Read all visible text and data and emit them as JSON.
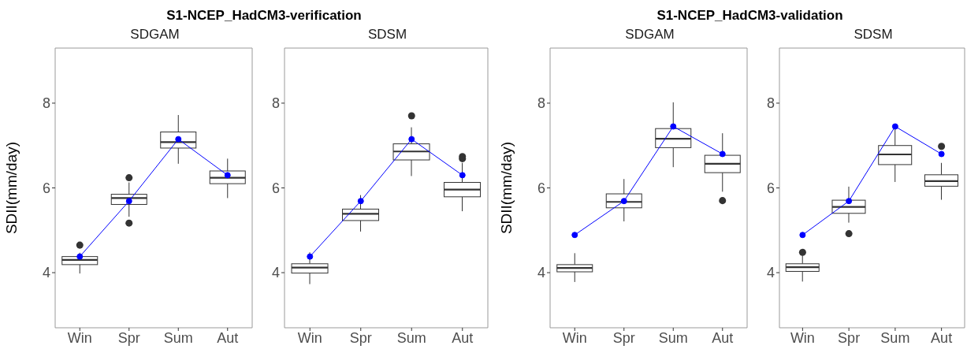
{
  "chart_data": [
    {
      "type": "box",
      "title": "S1-NCEP_HadCM3-verification",
      "subtitle": "SDGAM",
      "ylabel": "SDII(mm/day)",
      "categories": [
        "Win",
        "Spr",
        "Sum",
        "Aut"
      ],
      "ylim": [
        2.7,
        9.3
      ],
      "yticks": [
        4,
        6,
        8
      ],
      "color": "#333333",
      "marker": "circle",
      "boxes": [
        {
          "low": 3.98,
          "q1": 4.19,
          "median": 4.3,
          "q3": 4.38,
          "high": 4.47,
          "outliers": [
            4.65
          ]
        },
        {
          "low": 5.32,
          "q1": 5.61,
          "median": 5.76,
          "q3": 5.85,
          "high": 6.13,
          "outliers": [
            6.24,
            5.17
          ]
        },
        {
          "low": 6.57,
          "q1": 6.94,
          "median": 7.08,
          "q3": 7.32,
          "high": 7.72
        },
        {
          "low": 5.76,
          "q1": 6.1,
          "median": 6.24,
          "q3": 6.4,
          "high": 6.69
        }
      ],
      "series": [
        {
          "type": "line",
          "color": "#0000ff",
          "values": [
            4.38,
            5.69,
            7.15,
            6.3
          ]
        }
      ]
    },
    {
      "type": "box",
      "subtitle": "SDSM",
      "categories": [
        "Win",
        "Spr",
        "Sum",
        "Aut"
      ],
      "ylim": [
        2.7,
        9.3
      ],
      "yticks": [
        4,
        6,
        8
      ],
      "color": "#333333",
      "marker": "circle",
      "boxes": [
        {
          "low": 3.73,
          "q1": 3.99,
          "median": 4.12,
          "q3": 4.21,
          "high": 4.48
        },
        {
          "low": 4.97,
          "q1": 5.23,
          "median": 5.39,
          "q3": 5.5,
          "high": 5.83
        },
        {
          "low": 6.28,
          "q1": 6.66,
          "median": 6.86,
          "q3": 7.04,
          "high": 7.43,
          "outliers": [
            7.7
          ]
        },
        {
          "low": 5.45,
          "q1": 5.79,
          "median": 5.96,
          "q3": 6.13,
          "high": 6.59,
          "outliers": [
            6.74,
            6.69
          ]
        }
      ],
      "series": [
        {
          "type": "line",
          "color": "#0000ff",
          "values": [
            4.38,
            5.69,
            7.15,
            6.3
          ]
        }
      ]
    },
    {
      "type": "box",
      "title": "S1-NCEP_HadCM3-validation",
      "subtitle": "SDGAM",
      "ylabel": "SDII(mm/day)",
      "categories": [
        "Win",
        "Spr",
        "Sum",
        "Aut"
      ],
      "ylim": [
        2.7,
        9.3
      ],
      "yticks": [
        4,
        6,
        8
      ],
      "color": "#333333",
      "marker": "circle",
      "boxes": [
        {
          "low": 3.78,
          "q1": 4.02,
          "median": 4.11,
          "q3": 4.19,
          "high": 4.46
        },
        {
          "low": 5.21,
          "q1": 5.53,
          "median": 5.67,
          "q3": 5.86,
          "high": 6.21
        },
        {
          "low": 6.49,
          "q1": 6.95,
          "median": 7.16,
          "q3": 7.4,
          "high": 8.02
        },
        {
          "low": 5.91,
          "q1": 6.36,
          "median": 6.57,
          "q3": 6.77,
          "high": 7.29,
          "outliers": [
            5.7
          ]
        }
      ],
      "series": [
        {
          "type": "line",
          "color": "#0000ff",
          "values": [
            4.89,
            5.69,
            7.45,
            6.8
          ]
        }
      ]
    },
    {
      "type": "box",
      "subtitle": "SDSM",
      "categories": [
        "Win",
        "Spr",
        "Sum",
        "Aut"
      ],
      "ylim": [
        2.7,
        9.3
      ],
      "yticks": [
        4,
        6,
        8
      ],
      "color": "#333333",
      "marker": "circle",
      "boxes": [
        {
          "low": 3.79,
          "q1": 4.03,
          "median": 4.13,
          "q3": 4.21,
          "high": 4.41,
          "outliers": [
            4.48
          ]
        },
        {
          "low": 5.18,
          "q1": 5.4,
          "median": 5.55,
          "q3": 5.71,
          "high": 6.03,
          "outliers": [
            4.92
          ]
        },
        {
          "low": 6.14,
          "q1": 6.55,
          "median": 6.79,
          "q3": 7.0,
          "high": 7.45
        },
        {
          "low": 5.72,
          "q1": 6.04,
          "median": 6.16,
          "q3": 6.31,
          "high": 6.59,
          "outliers": [
            6.98
          ]
        }
      ],
      "series": [
        {
          "type": "line",
          "color": "#0000ff",
          "values": [
            4.89,
            5.69,
            7.45,
            6.8
          ]
        }
      ]
    }
  ]
}
